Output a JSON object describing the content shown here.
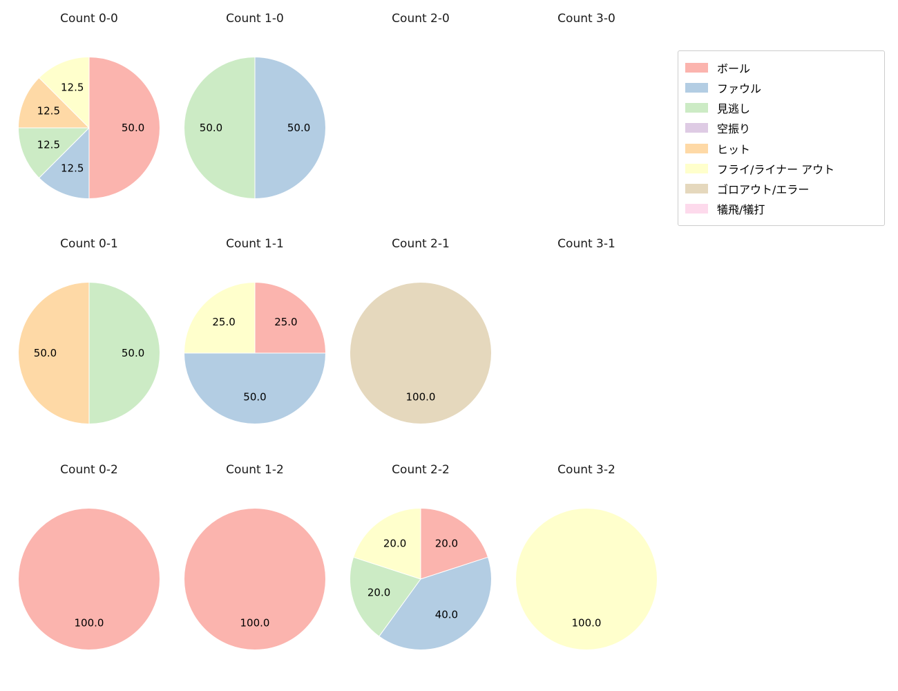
{
  "chart_data": {
    "type": "pie",
    "layout": "3 rows x 4 columns of pie charts, legend at top right",
    "legend_position": "upper right",
    "categories": [
      {
        "label": "ボール",
        "color": "#fbb4ae"
      },
      {
        "label": "ファウル",
        "color": "#b3cde3"
      },
      {
        "label": "見逃し",
        "color": "#ccebc5"
      },
      {
        "label": "空振り",
        "color": "#decbe4"
      },
      {
        "label": "ヒット",
        "color": "#fed9a6"
      },
      {
        "label": "フライ/ライナー アウト",
        "color": "#ffffcc"
      },
      {
        "label": "ゴロアウト/エラー",
        "color": "#e5d8bd"
      },
      {
        "label": "犠飛/犠打",
        "color": "#fddaec"
      }
    ],
    "charts": [
      {
        "title": "Count 0-0",
        "slices": [
          {
            "label": "ボール",
            "value": 50.0
          },
          {
            "label": "ファウル",
            "value": 12.5
          },
          {
            "label": "見逃し",
            "value": 12.5
          },
          {
            "label": "ヒット",
            "value": 12.5
          },
          {
            "label": "フライ/ライナー アウト",
            "value": 12.5
          }
        ]
      },
      {
        "title": "Count 1-0",
        "slices": [
          {
            "label": "ファウル",
            "value": 50.0
          },
          {
            "label": "見逃し",
            "value": 50.0
          }
        ]
      },
      {
        "title": "Count 2-0",
        "slices": []
      },
      {
        "title": "Count 3-0",
        "slices": []
      },
      {
        "title": "Count 0-1",
        "slices": [
          {
            "label": "見逃し",
            "value": 50.0
          },
          {
            "label": "ヒット",
            "value": 50.0
          }
        ]
      },
      {
        "title": "Count 1-1",
        "slices": [
          {
            "label": "ボール",
            "value": 25.0
          },
          {
            "label": "ファウル",
            "value": 50.0
          },
          {
            "label": "フライ/ライナー アウト",
            "value": 25.0
          }
        ]
      },
      {
        "title": "Count 2-1",
        "slices": [
          {
            "label": "ゴロアウト/エラー",
            "value": 100.0
          }
        ]
      },
      {
        "title": "Count 3-1",
        "slices": []
      },
      {
        "title": "Count 0-2",
        "slices": [
          {
            "label": "ボール",
            "value": 100.0
          }
        ]
      },
      {
        "title": "Count 1-2",
        "slices": [
          {
            "label": "ボール",
            "value": 100.0
          }
        ]
      },
      {
        "title": "Count 2-2",
        "slices": [
          {
            "label": "ボール",
            "value": 20.0
          },
          {
            "label": "ファウル",
            "value": 40.0
          },
          {
            "label": "見逃し",
            "value": 20.0
          },
          {
            "label": "フライ/ライナー アウト",
            "value": 20.0
          }
        ]
      },
      {
        "title": "Count 3-2",
        "slices": [
          {
            "label": "フライ/ライナー アウト",
            "value": 100.0
          }
        ]
      }
    ]
  }
}
